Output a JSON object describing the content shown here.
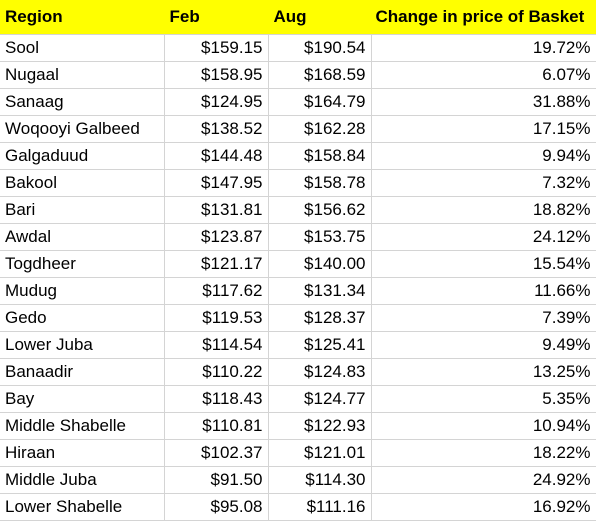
{
  "headers": {
    "region": "Region",
    "feb": "Feb",
    "aug": "Aug",
    "change": "Change in price of Basket"
  },
  "colors": {
    "header_fill": "#ffff00",
    "gridline": "#d4d4d4"
  },
  "rows": [
    {
      "region": "Sool",
      "feb": "$159.15",
      "aug": "$190.54",
      "change": "19.72%"
    },
    {
      "region": "Nugaal",
      "feb": "$158.95",
      "aug": "$168.59",
      "change": "6.07%"
    },
    {
      "region": "Sanaag",
      "feb": "$124.95",
      "aug": "$164.79",
      "change": "31.88%"
    },
    {
      "region": "Woqooyi Galbeed",
      "feb": "$138.52",
      "aug": "$162.28",
      "change": "17.15%"
    },
    {
      "region": "Galgaduud",
      "feb": "$144.48",
      "aug": "$158.84",
      "change": "9.94%"
    },
    {
      "region": "Bakool",
      "feb": "$147.95",
      "aug": "$158.78",
      "change": "7.32%"
    },
    {
      "region": "Bari",
      "feb": "$131.81",
      "aug": "$156.62",
      "change": "18.82%"
    },
    {
      "region": "Awdal",
      "feb": "$123.87",
      "aug": "$153.75",
      "change": "24.12%"
    },
    {
      "region": "Togdheer",
      "feb": "$121.17",
      "aug": "$140.00",
      "change": "15.54%"
    },
    {
      "region": "Mudug",
      "feb": "$117.62",
      "aug": "$131.34",
      "change": "11.66%"
    },
    {
      "region": "Gedo",
      "feb": "$119.53",
      "aug": "$128.37",
      "change": "7.39%"
    },
    {
      "region": "Lower Juba",
      "feb": "$114.54",
      "aug": "$125.41",
      "change": "9.49%"
    },
    {
      "region": "Banaadir",
      "feb": "$110.22",
      "aug": "$124.83",
      "change": "13.25%"
    },
    {
      "region": "Bay",
      "feb": "$118.43",
      "aug": "$124.77",
      "change": "5.35%"
    },
    {
      "region": "Middle Shabelle",
      "feb": "$110.81",
      "aug": "$122.93",
      "change": "10.94%"
    },
    {
      "region": "Hiraan",
      "feb": "$102.37",
      "aug": "$121.01",
      "change": "18.22%"
    },
    {
      "region": "Middle Juba",
      "feb": "$91.50",
      "aug": "$114.30",
      "change": "24.92%"
    },
    {
      "region": "Lower Shabelle",
      "feb": "$95.08",
      "aug": "$111.16",
      "change": "16.92%"
    }
  ]
}
